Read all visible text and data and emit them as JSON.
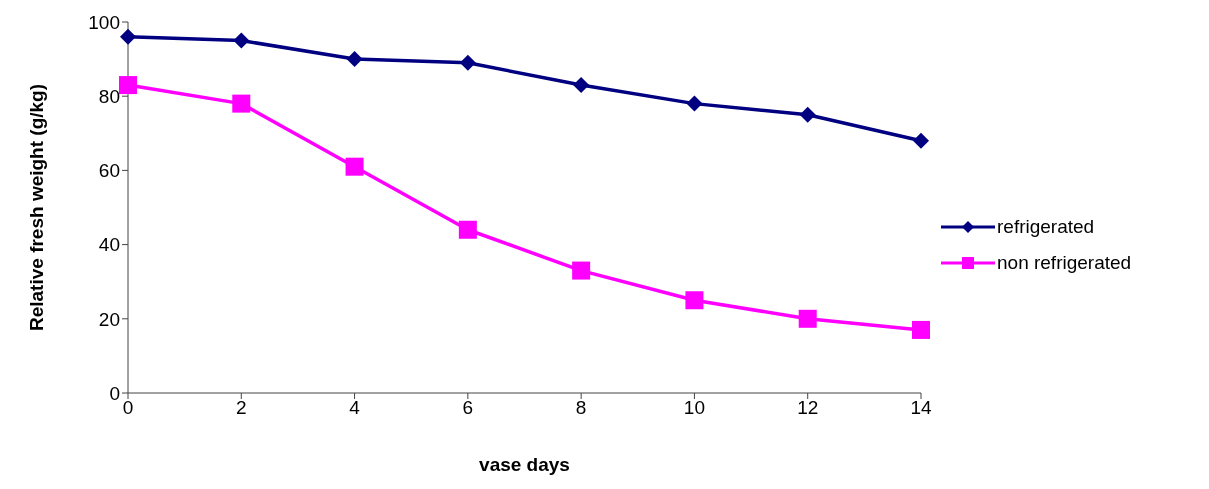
{
  "chart_data": {
    "type": "line",
    "xlabel": "vase days",
    "ylabel": "Relative fresh weight  (g/kg)",
    "categories": [
      "0",
      "2",
      "4",
      "6",
      "8",
      "10",
      "12",
      "14"
    ],
    "ylim": [
      0,
      100
    ],
    "yticks": [
      0,
      20,
      40,
      60,
      80,
      100
    ],
    "grid": false,
    "legend": "right",
    "line_style": "solid",
    "series": [
      {
        "name": "refrigerated",
        "color": "#000080",
        "marker": "diamond",
        "values": [
          96,
          95,
          90,
          89,
          83,
          78,
          75,
          68
        ]
      },
      {
        "name": "non refrigerated",
        "color": "#ff00ff",
        "marker": "square",
        "values": [
          83,
          78,
          61,
          44,
          33,
          25,
          20,
          17
        ]
      }
    ]
  }
}
